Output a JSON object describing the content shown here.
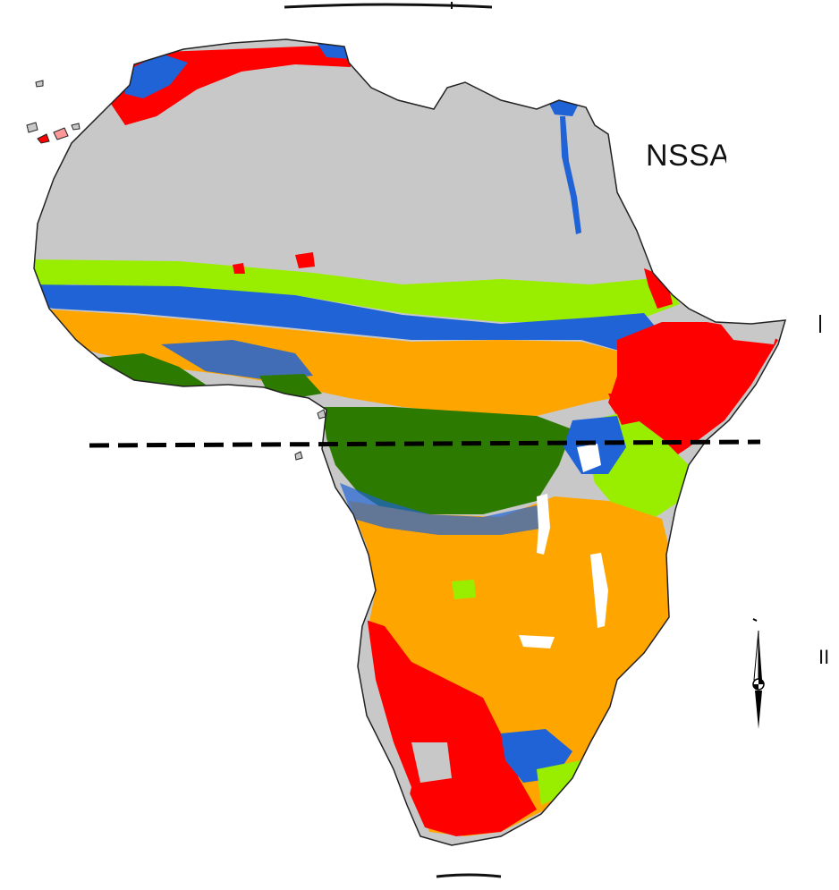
{
  "map": {
    "region_label": "NSSA",
    "legend_colors": {
      "desert": "#c8c8c8",
      "red_class": "#ff0000",
      "lime_class": "#99ee00",
      "blue_class": "#1f63d6",
      "orange_class": "#ffa500",
      "forest": "#2d7a00",
      "water": "#ffffff",
      "equator_line": "#000000"
    },
    "equator": "dashed-line",
    "north_arrow_icon": "north-arrow-icon",
    "edge_marks": [
      "I",
      "II"
    ]
  }
}
